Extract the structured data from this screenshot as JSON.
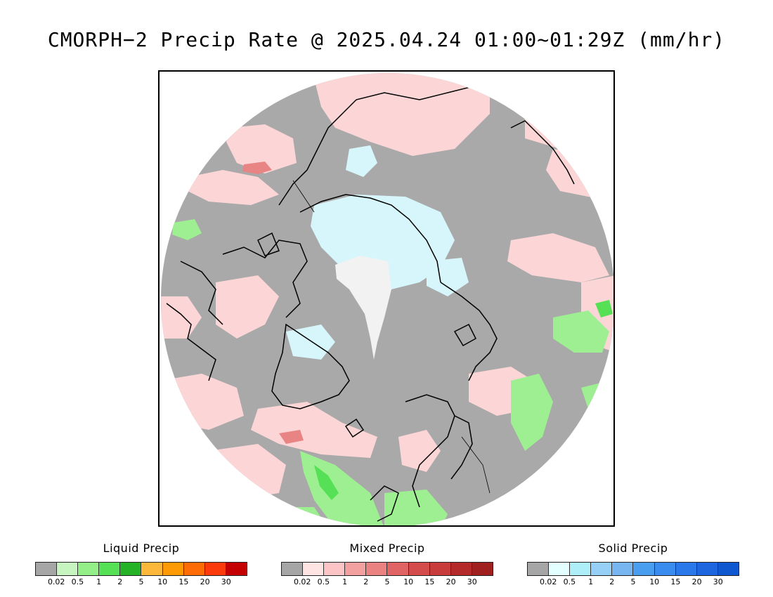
{
  "title": "CMORPH−2 Precip Rate @ 2025.04.24 01:00~01:29Z (mm/hr)",
  "map": {
    "projection": "north polar stereographic",
    "background_color": "#a9a9a9",
    "coastline_color": "#000000"
  },
  "legends": [
    {
      "title": "Liquid Precip",
      "colors": [
        "#a6a6a6",
        "#c6f5c0",
        "#94ef88",
        "#55e055",
        "#26b226",
        "#fbb83a",
        "#fd9a06",
        "#fd6c06",
        "#fc3b0d",
        "#c40000"
      ],
      "ticks": [
        "0.02",
        "0.5",
        "1",
        "2",
        "5",
        "10",
        "15",
        "20",
        "30"
      ]
    },
    {
      "title": "Mixed Precip",
      "colors": [
        "#a6a6a6",
        "#ffe4e4",
        "#fcc4c4",
        "#f2a0a0",
        "#ea8282",
        "#e06464",
        "#d44c4c",
        "#c83c3c",
        "#b42a2a",
        "#a02020"
      ],
      "ticks": [
        "0.02",
        "0.5",
        "1",
        "2",
        "5",
        "10",
        "15",
        "20",
        "30"
      ]
    },
    {
      "title": "Solid Precip",
      "colors": [
        "#a6a6a6",
        "#e4ffff",
        "#aeeef8",
        "#96d0f6",
        "#78b6f2",
        "#4a9ef0",
        "#3a8cee",
        "#2a78ea",
        "#1e66e0",
        "#1058d0"
      ],
      "ticks": [
        "0.02",
        "0.5",
        "1",
        "2",
        "5",
        "10",
        "15",
        "20",
        "30"
      ]
    }
  ]
}
